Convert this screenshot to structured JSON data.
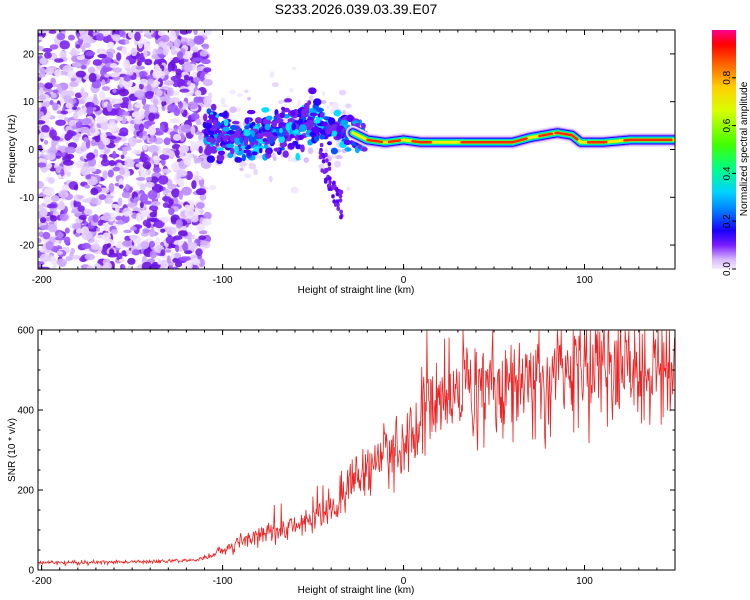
{
  "title": "S233.2026.039.03.39.E07",
  "chart_data": [
    {
      "type": "heatmap",
      "name": "spectrogram",
      "xlabel": "Height of straight line (km)",
      "ylabel": "Frequency (Hz)",
      "xlim": [
        -202,
        150
      ],
      "ylim": [
        -25,
        25
      ],
      "xticks": [
        -200,
        -100,
        0,
        100
      ],
      "yticks": [
        -20,
        -10,
        0,
        10,
        20
      ],
      "ridge": [
        {
          "x": -110,
          "y": 3.5
        },
        {
          "x": -100,
          "y": 3
        },
        {
          "x": -90,
          "y": 2.5
        },
        {
          "x": -80,
          "y": 3
        },
        {
          "x": -70,
          "y": 4
        },
        {
          "x": -60,
          "y": 4.5
        },
        {
          "x": -50,
          "y": 6
        },
        {
          "x": -42,
          "y": 5
        },
        {
          "x": -35,
          "y": 4
        },
        {
          "x": -28,
          "y": 3.5
        },
        {
          "x": -20,
          "y": 2
        },
        {
          "x": -10,
          "y": 1.5
        },
        {
          "x": 0,
          "y": 2
        },
        {
          "x": 10,
          "y": 1.5
        },
        {
          "x": 20,
          "y": 1.5
        },
        {
          "x": 40,
          "y": 1.5
        },
        {
          "x": 60,
          "y": 1.5
        },
        {
          "x": 70,
          "y": 2.5
        },
        {
          "x": 85,
          "y": 3.5
        },
        {
          "x": 93,
          "y": 3
        },
        {
          "x": 98,
          "y": 1.5
        },
        {
          "x": 110,
          "y": 1.5
        },
        {
          "x": 125,
          "y": 2
        },
        {
          "x": 150,
          "y": 2
        }
      ]
    },
    {
      "type": "colorbar",
      "name": "amplitude-scale",
      "label": "Normalized spectral amplitude",
      "range": [
        0,
        1
      ],
      "ticks": [
        "0.0",
        "0.2",
        "0.4",
        "0.6",
        "0.8"
      ]
    },
    {
      "type": "line",
      "name": "snr",
      "xlabel": "Height of straight line (km)",
      "ylabel": "SNR (10 * v/v)",
      "xlim": [
        -202,
        150
      ],
      "ylim": [
        0,
        600
      ],
      "xticks": [
        -200,
        -100,
        0,
        100
      ],
      "yticks": [
        0,
        200,
        400,
        600
      ],
      "color": "#ee2222",
      "trend": [
        {
          "x": -202,
          "y": 18
        },
        {
          "x": -150,
          "y": 20
        },
        {
          "x": -115,
          "y": 25
        },
        {
          "x": -100,
          "y": 45
        },
        {
          "x": -90,
          "y": 70
        },
        {
          "x": -75,
          "y": 100
        },
        {
          "x": -60,
          "y": 110
        },
        {
          "x": -45,
          "y": 130
        },
        {
          "x": -35,
          "y": 170
        },
        {
          "x": -25,
          "y": 230
        },
        {
          "x": -15,
          "y": 270
        },
        {
          "x": -5,
          "y": 300
        },
        {
          "x": 5,
          "y": 350
        },
        {
          "x": 15,
          "y": 400
        },
        {
          "x": 25,
          "y": 430
        },
        {
          "x": 40,
          "y": 450
        },
        {
          "x": 60,
          "y": 470
        },
        {
          "x": 80,
          "y": 480
        },
        {
          "x": 100,
          "y": 500
        },
        {
          "x": 120,
          "y": 505
        },
        {
          "x": 150,
          "y": 520
        }
      ]
    }
  ]
}
